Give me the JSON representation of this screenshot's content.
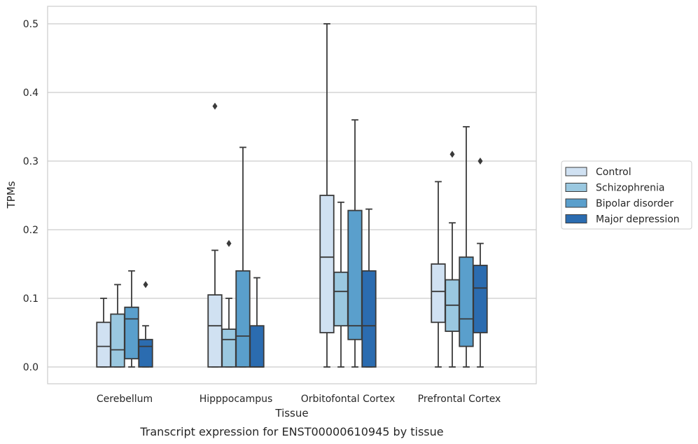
{
  "chart_data": {
    "type": "box",
    "xlabel": "Tissue",
    "ylabel": "TPMs",
    "ylim": [
      -0.025,
      0.525
    ],
    "yticks": [
      "0.0",
      "0.1",
      "0.2",
      "0.3",
      "0.4",
      "0.5"
    ],
    "ytick_values": [
      0,
      0.1,
      0.2,
      0.3,
      0.4,
      0.5
    ],
    "grid": true,
    "legend_position": "right",
    "categories": [
      "Cerebellum",
      "Hipppocampus",
      "Orbitofontal Cortex",
      "Prefrontal Cortex"
    ],
    "series": [
      {
        "name": "Control",
        "color": "#d0e1f2",
        "boxes": [
          {
            "whislo": 0.0,
            "q1": 0.0,
            "med": 0.03,
            "q3": 0.065,
            "whishi": 0.1,
            "fliers": []
          },
          {
            "whislo": 0.0,
            "q1": 0.0,
            "med": 0.06,
            "q3": 0.105,
            "whishi": 0.17,
            "fliers": [
              0.38
            ]
          },
          {
            "whislo": 0.0,
            "q1": 0.05,
            "med": 0.16,
            "q3": 0.25,
            "whishi": 0.5,
            "fliers": []
          },
          {
            "whislo": 0.0,
            "q1": 0.065,
            "med": 0.11,
            "q3": 0.15,
            "whishi": 0.27,
            "fliers": []
          }
        ]
      },
      {
        "name": "Schizophrenia",
        "color": "#9ac8e0",
        "boxes": [
          {
            "whislo": 0.0,
            "q1": 0.0,
            "med": 0.025,
            "q3": 0.077,
            "whishi": 0.12,
            "fliers": []
          },
          {
            "whislo": 0.0,
            "q1": 0.0,
            "med": 0.04,
            "q3": 0.055,
            "whishi": 0.1,
            "fliers": [
              0.18
            ]
          },
          {
            "whislo": 0.0,
            "q1": 0.06,
            "med": 0.11,
            "q3": 0.138,
            "whishi": 0.24,
            "fliers": []
          },
          {
            "whislo": 0.0,
            "q1": 0.052,
            "med": 0.09,
            "q3": 0.127,
            "whishi": 0.21,
            "fliers": [
              0.31
            ]
          }
        ]
      },
      {
        "name": "Bipolar disorder",
        "color": "#5a9fcc",
        "boxes": [
          {
            "whislo": 0.0,
            "q1": 0.012,
            "med": 0.07,
            "q3": 0.087,
            "whishi": 0.14,
            "fliers": []
          },
          {
            "whislo": 0.0,
            "q1": 0.0,
            "med": 0.045,
            "q3": 0.14,
            "whishi": 0.32,
            "fliers": []
          },
          {
            "whislo": 0.0,
            "q1": 0.04,
            "med": 0.06,
            "q3": 0.228,
            "whishi": 0.36,
            "fliers": []
          },
          {
            "whislo": 0.0,
            "q1": 0.03,
            "med": 0.07,
            "q3": 0.16,
            "whishi": 0.35,
            "fliers": []
          }
        ]
      },
      {
        "name": "Major depression",
        "color": "#2b6cb0",
        "boxes": [
          {
            "whislo": 0.0,
            "q1": 0.0,
            "med": 0.03,
            "q3": 0.04,
            "whishi": 0.06,
            "fliers": [
              0.12
            ]
          },
          {
            "whislo": 0.0,
            "q1": 0.0,
            "med": 0.0,
            "q3": 0.06,
            "whishi": 0.13,
            "fliers": []
          },
          {
            "whislo": 0.0,
            "q1": 0.0,
            "med": 0.06,
            "q3": 0.14,
            "whishi": 0.23,
            "fliers": []
          },
          {
            "whislo": 0.0,
            "q1": 0.05,
            "med": 0.115,
            "q3": 0.148,
            "whishi": 0.18,
            "fliers": [
              0.3
            ]
          }
        ]
      }
    ]
  },
  "caption": "Transcript expression for ENST00000610945 by tissue"
}
